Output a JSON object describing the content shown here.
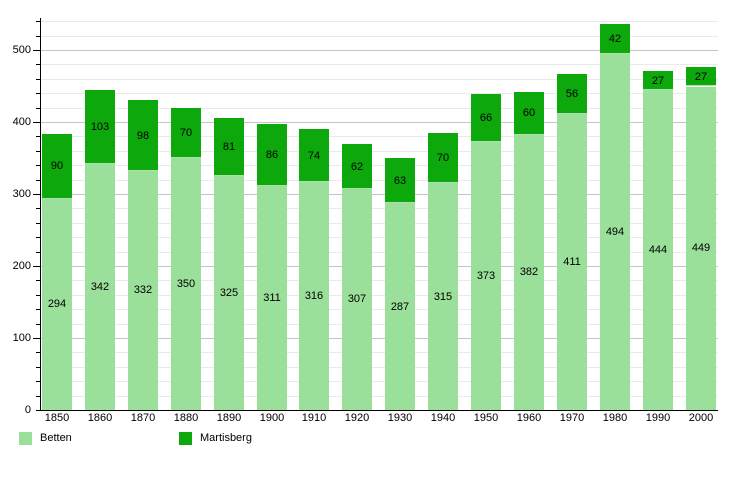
{
  "chart_data": {
    "type": "bar",
    "stacked": true,
    "categories": [
      "1850",
      "1860",
      "1870",
      "1880",
      "1890",
      "1900",
      "1910",
      "1920",
      "1930",
      "1940",
      "1950",
      "1960",
      "1970",
      "1980",
      "1990",
      "2000"
    ],
    "series": [
      {
        "name": "Betten",
        "color": "#9ADF9A",
        "values": [
          294,
          342,
          332,
          350,
          325,
          311,
          316,
          307,
          287,
          315,
          373,
          382,
          411,
          494,
          444,
          449
        ]
      },
      {
        "name": "Martisberg",
        "color": "#0CA80C",
        "values": [
          90,
          103,
          98,
          70,
          81,
          86,
          74,
          62,
          63,
          70,
          66,
          60,
          56,
          42,
          27,
          27
        ]
      }
    ],
    "title": "",
    "xlabel": "",
    "ylabel": "",
    "ylim": [
      0,
      544
    ],
    "y_major_ticks": [
      0,
      100,
      200,
      300,
      400,
      500
    ],
    "y_minor_interval": 20,
    "grid": true,
    "legend_position": "bottom",
    "data_labels": true
  },
  "legend": {
    "items": [
      {
        "label": "Betten",
        "color": "#9ADF9A"
      },
      {
        "label": "Martisberg",
        "color": "#0CA80C"
      }
    ]
  }
}
